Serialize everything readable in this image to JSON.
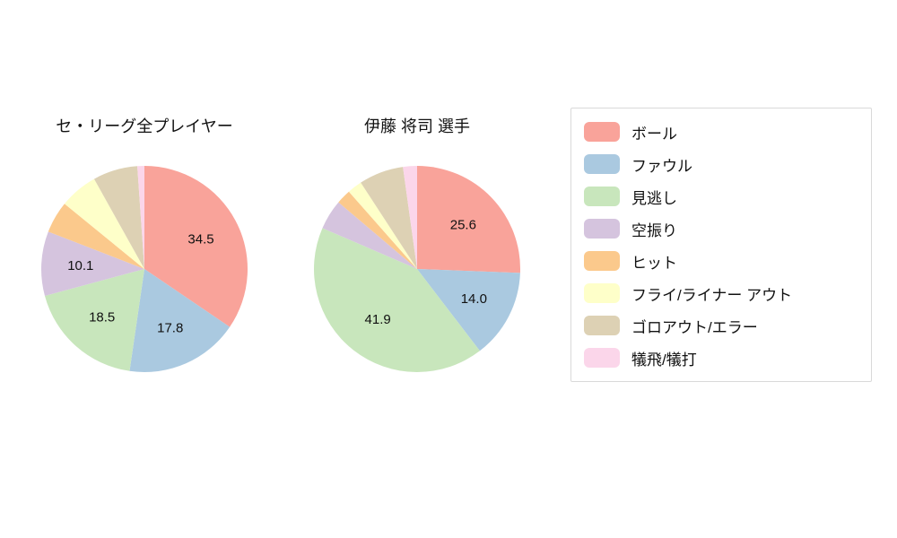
{
  "chart_data": [
    {
      "type": "pie",
      "title": "セ・リーグ全プレイヤー",
      "labels": [
        "ボール",
        "ファウル",
        "見逃し",
        "空振り",
        "ヒット",
        "フライ/ライナー アウト",
        "ゴロアウト/エラー",
        "犠飛/犠打"
      ],
      "values": [
        34.5,
        17.8,
        18.5,
        10.1,
        5.0,
        6.0,
        7.0,
        1.1
      ],
      "shown_value_labels": [
        "34.5",
        "17.8",
        "18.5",
        "10.1"
      ],
      "colors": [
        "#f9a39a",
        "#aac9e0",
        "#c8e6bc",
        "#d5c4de",
        "#fbc98c",
        "#feffc9",
        "#ddd1b4",
        "#fbd6ea"
      ],
      "start_angle": 90,
      "direction": "clockwise",
      "label_min_pct": 10
    },
    {
      "type": "pie",
      "title": "伊藤 将司  選手",
      "labels": [
        "ボール",
        "ファウル",
        "見逃し",
        "空振り",
        "ヒット",
        "フライ/ライナー アウト",
        "ゴロアウト/エラー",
        "犠飛/犠打"
      ],
      "values": [
        25.6,
        14.0,
        41.9,
        4.7,
        2.3,
        2.3,
        7.0,
        2.2
      ],
      "shown_value_labels": [
        "25.6",
        "14.0",
        "41.9"
      ],
      "colors": [
        "#f9a39a",
        "#aac9e0",
        "#c8e6bc",
        "#d5c4de",
        "#fbc98c",
        "#feffc9",
        "#ddd1b4",
        "#fbd6ea"
      ],
      "start_angle": 90,
      "direction": "clockwise",
      "label_min_pct": 10
    }
  ],
  "legend": {
    "position": "right",
    "items": [
      {
        "label": "ボール",
        "color": "#f9a39a"
      },
      {
        "label": "ファウル",
        "color": "#aac9e0"
      },
      {
        "label": "見逃し",
        "color": "#c8e6bc"
      },
      {
        "label": "空振り",
        "color": "#d5c4de"
      },
      {
        "label": "ヒット",
        "color": "#fbc98c"
      },
      {
        "label": "フライ/ライナー アウト",
        "color": "#feffc9"
      },
      {
        "label": "ゴロアウト/エラー",
        "color": "#ddd1b4"
      },
      {
        "label": "犠飛/犠打",
        "color": "#fbd6ea"
      }
    ]
  }
}
